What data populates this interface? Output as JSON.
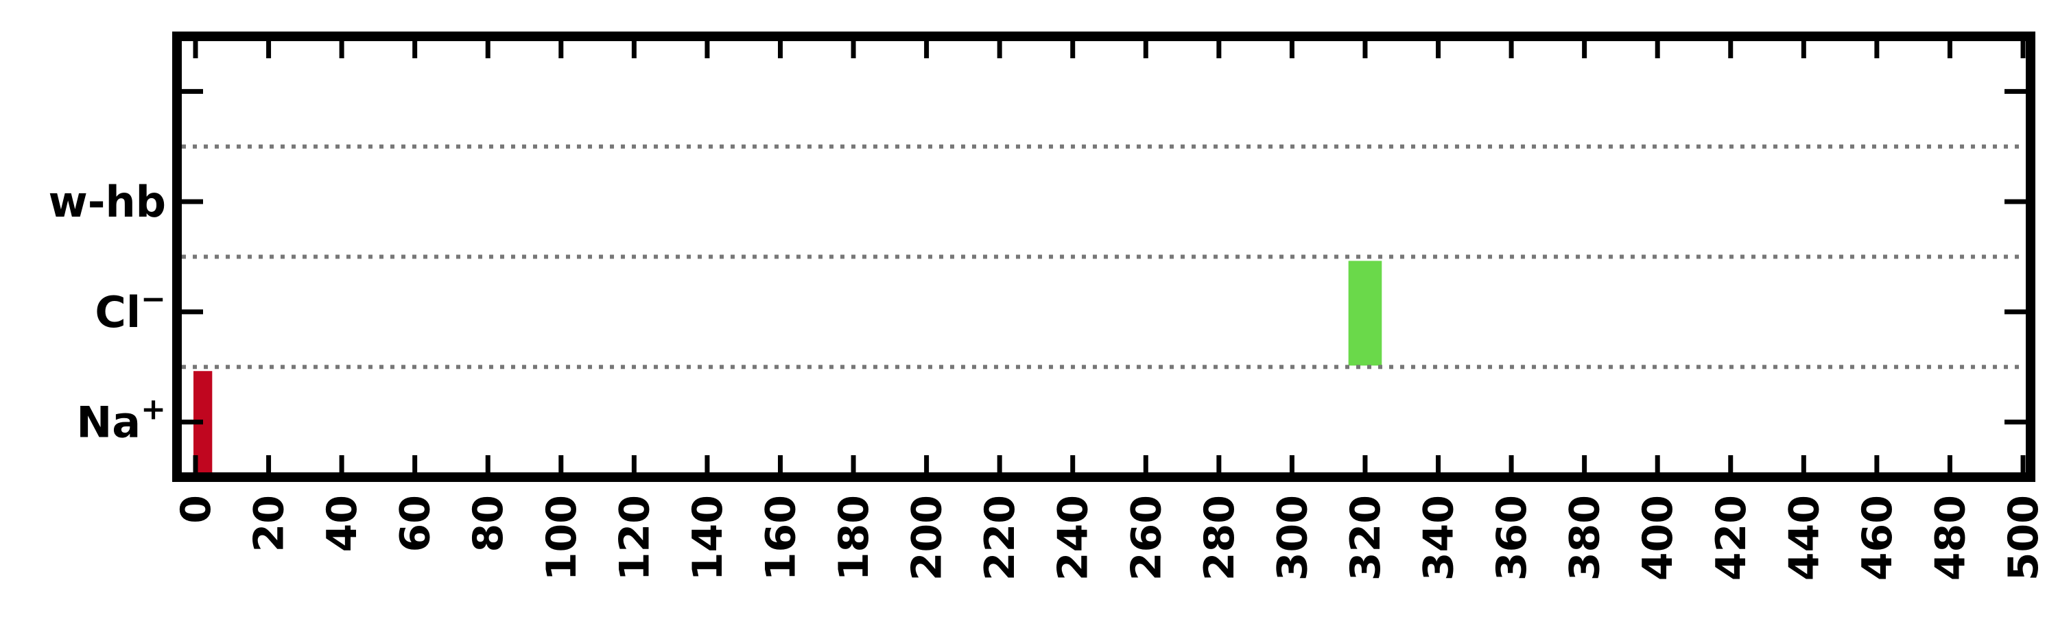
{
  "chart_data": {
    "type": "bar",
    "orientation": "horizontal-intervals",
    "title": "",
    "xlabel": "",
    "ylabel": "",
    "xlim": [
      -2,
      505
    ],
    "x_ticks": [
      0,
      20,
      40,
      60,
      80,
      100,
      120,
      140,
      160,
      180,
      200,
      220,
      240,
      260,
      280,
      300,
      320,
      340,
      360,
      380,
      400,
      420,
      440,
      460,
      480,
      500
    ],
    "x_tick_rotation": "vertical",
    "categories": [
      {
        "label": "Na",
        "sup": "+"
      },
      {
        "label": "Cl",
        "sup": "−"
      },
      {
        "label": "w-hb",
        "sup": ""
      },
      {
        "label": "",
        "sup": ""
      }
    ],
    "series": [
      {
        "category": "Na",
        "start": 0,
        "end": 4,
        "color": "#c0061f"
      },
      {
        "category": "Cl",
        "start": 316,
        "end": 324,
        "color": "#6ad94a"
      }
    ],
    "separators": "dotted",
    "grid": false,
    "legend": "none"
  }
}
